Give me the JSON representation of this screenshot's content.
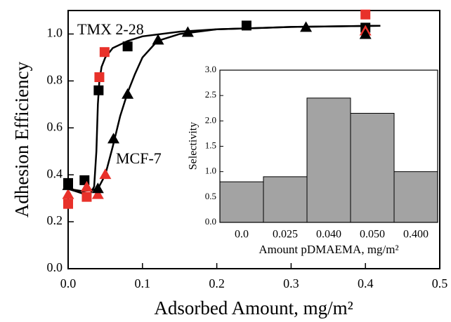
{
  "chart_data": [
    {
      "type": "line",
      "ylabel": "Adhesion Efficiency",
      "xlabel": "Adsorbed Amount, mg/m²",
      "xlim": [
        0,
        0.5
      ],
      "xticks": [
        {
          "value": 0,
          "label": "0.0"
        },
        0.1,
        0.2,
        0.3,
        0.4,
        0.5
      ],
      "ylim": [
        0,
        1.1
      ],
      "yticks": [
        {
          "value": 0,
          "label": "0.0"
        },
        0.2,
        0.4,
        0.6,
        0.8,
        {
          "value": 1,
          "label": "1.0"
        }
      ],
      "series": [
        {
          "name": "TMX 2-28",
          "color": "#000000",
          "marker": "none",
          "x": [
            0,
            0.01,
            0.02,
            0.03,
            0.035,
            0.038,
            0.04,
            0.042,
            0.045,
            0.05,
            0.06,
            0.08,
            0.1,
            0.15,
            0.2,
            0.3,
            0.42
          ],
          "values": [
            0.34,
            0.33,
            0.32,
            0.32,
            0.35,
            0.5,
            0.7,
            0.8,
            0.86,
            0.9,
            0.94,
            0.97,
            0.99,
            1.01,
            1.02,
            1.03,
            1.035
          ]
        },
        {
          "name": "MCF-7",
          "color": "#000000",
          "marker": "none",
          "x": [
            0,
            0.02,
            0.04,
            0.05,
            0.06,
            0.07,
            0.08,
            0.09,
            0.1,
            0.12,
            0.15,
            0.2,
            0.3,
            0.42
          ],
          "values": [
            0.34,
            0.33,
            0.34,
            0.4,
            0.52,
            0.65,
            0.75,
            0.83,
            0.9,
            0.97,
            1.0,
            1.02,
            1.03,
            1.035
          ]
        },
        {
          "color": "#e8312a",
          "marker": "square",
          "x": [
            0,
            0.025,
            0.042,
            0.049,
            0.4
          ],
          "values": [
            0.276,
            0.306,
            0.816,
            0.923,
            1.083
          ]
        },
        {
          "color": "#000000",
          "marker": "square",
          "x": [
            0,
            0.022,
            0.041,
            0.08,
            0.24,
            0.4
          ],
          "values": [
            0.365,
            0.377,
            0.76,
            0.947,
            1.036,
            1.027
          ]
        },
        {
          "color": "#e8312a",
          "marker": "triangle",
          "x": [
            0,
            0.025,
            0.04,
            0.05,
            0.4
          ],
          "values": [
            0.315,
            0.347,
            0.315,
            0.4,
            1.012
          ]
        },
        {
          "color": "#000000",
          "marker": "triangle",
          "x": [
            0,
            0.04,
            0.061,
            0.08,
            0.121,
            0.161,
            0.32,
            0.4
          ],
          "values": [
            0.353,
            0.34,
            0.552,
            0.742,
            0.973,
            1.006,
            1.027,
            0.997
          ]
        }
      ]
    },
    {
      "type": "bar",
      "ylabel": "Selectivity",
      "xlabel": "Amount pDMAEMA, mg/m²",
      "categories": [
        "0.0",
        "0.025",
        "0.040",
        "0.050",
        "0.400"
      ],
      "values": [
        0.8,
        0.9,
        2.45,
        2.15,
        1.0
      ],
      "color": "#a3a3a3",
      "ylim": [
        0,
        3
      ],
      "yticks": [
        {
          "value": 0,
          "label": "0.0"
        },
        0.5,
        {
          "value": 1,
          "label": "1.0"
        },
        1.5,
        {
          "value": 2,
          "label": "2.0"
        },
        2.5,
        {
          "value": 3,
          "label": "3.0"
        }
      ]
    }
  ]
}
